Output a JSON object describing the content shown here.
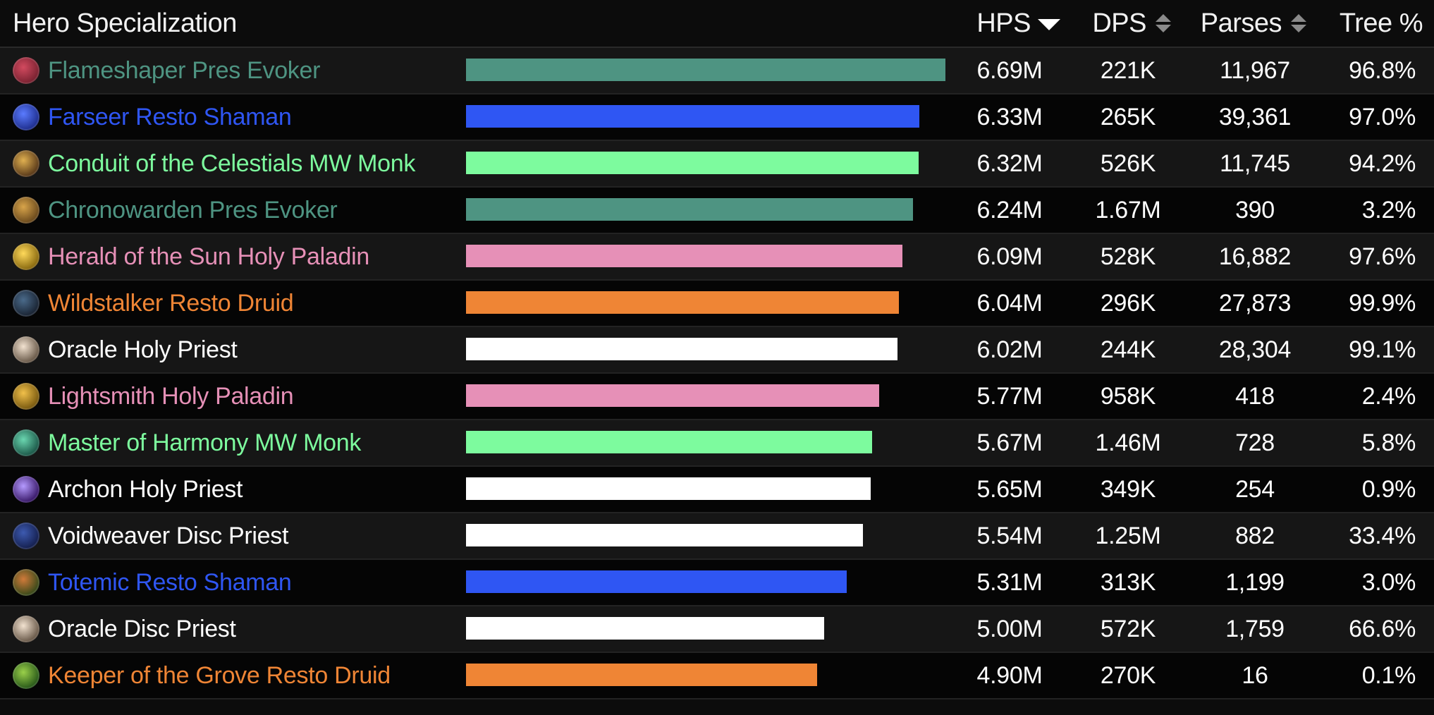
{
  "header": {
    "name_label": "Hero Specialization",
    "hps_label": "HPS",
    "dps_label": "DPS",
    "parses_label": "Parses",
    "tree_label": "Tree %",
    "sort_column": "HPS",
    "sort_direction": "descending"
  },
  "hps_max": 6.69,
  "rows": [
    {
      "name": "Flameshaper Pres Evoker",
      "color": "#4e9482",
      "icon": "flameshaper-icon",
      "hps_value": 6.69,
      "hps": "6.69M",
      "dps": "221K",
      "parses": "11,967",
      "tree": "96.8%"
    },
    {
      "name": "Farseer Resto Shaman",
      "color": "#2f56f3",
      "icon": "farseer-icon",
      "hps_value": 6.33,
      "hps": "6.33M",
      "dps": "265K",
      "parses": "39,361",
      "tree": "97.0%"
    },
    {
      "name": "Conduit of the Celestials MW Monk",
      "color": "#7dfb9e",
      "icon": "conduit-icon",
      "hps_value": 6.32,
      "hps": "6.32M",
      "dps": "526K",
      "parses": "11,745",
      "tree": "94.2%"
    },
    {
      "name": "Chronowarden Pres Evoker",
      "color": "#4e9482",
      "icon": "chronowarden-icon",
      "hps_value": 6.24,
      "hps": "6.24M",
      "dps": "1.67M",
      "parses": "390",
      "tree": "3.2%"
    },
    {
      "name": "Herald of the Sun Holy Paladin",
      "color": "#e690b7",
      "icon": "herald-icon",
      "hps_value": 6.09,
      "hps": "6.09M",
      "dps": "528K",
      "parses": "16,882",
      "tree": "97.6%"
    },
    {
      "name": "Wildstalker Resto Druid",
      "color": "#ef8535",
      "icon": "wildstalker-icon",
      "hps_value": 6.04,
      "hps": "6.04M",
      "dps": "296K",
      "parses": "27,873",
      "tree": "99.9%"
    },
    {
      "name": "Oracle Holy Priest",
      "color": "#ffffff",
      "icon": "oracle-icon",
      "hps_value": 6.02,
      "hps": "6.02M",
      "dps": "244K",
      "parses": "28,304",
      "tree": "99.1%"
    },
    {
      "name": "Lightsmith Holy Paladin",
      "color": "#e690b7",
      "icon": "lightsmith-icon",
      "hps_value": 5.77,
      "hps": "5.77M",
      "dps": "958K",
      "parses": "418",
      "tree": "2.4%"
    },
    {
      "name": "Master of Harmony MW Monk",
      "color": "#7dfb9e",
      "icon": "master-of-harmony-icon",
      "hps_value": 5.67,
      "hps": "5.67M",
      "dps": "1.46M",
      "parses": "728",
      "tree": "5.8%"
    },
    {
      "name": "Archon Holy Priest",
      "color": "#ffffff",
      "icon": "archon-icon",
      "hps_value": 5.65,
      "hps": "5.65M",
      "dps": "349K",
      "parses": "254",
      "tree": "0.9%"
    },
    {
      "name": "Voidweaver Disc Priest",
      "color": "#ffffff",
      "icon": "voidweaver-icon",
      "hps_value": 5.54,
      "hps": "5.54M",
      "dps": "1.25M",
      "parses": "882",
      "tree": "33.4%"
    },
    {
      "name": "Totemic Resto Shaman",
      "color": "#2f56f3",
      "icon": "totemic-icon",
      "hps_value": 5.31,
      "hps": "5.31M",
      "dps": "313K",
      "parses": "1,199",
      "tree": "3.0%"
    },
    {
      "name": "Oracle Disc Priest",
      "color": "#ffffff",
      "icon": "oracle-icon",
      "hps_value": 5.0,
      "hps": "5.00M",
      "dps": "572K",
      "parses": "1,759",
      "tree": "66.6%"
    },
    {
      "name": "Keeper of the Grove Resto Druid",
      "color": "#ef8535",
      "icon": "keeper-of-the-grove-icon",
      "hps_value": 4.9,
      "hps": "4.90M",
      "dps": "270K",
      "parses": "16",
      "tree": "0.1%"
    }
  ]
}
